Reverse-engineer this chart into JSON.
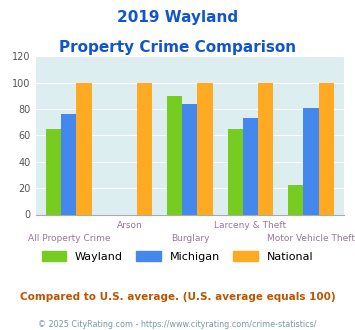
{
  "title_line1": "2019 Wayland",
  "title_line2": "Property Crime Comparison",
  "categories": [
    "All Property Crime",
    "Arson",
    "Burglary",
    "Larceny & Theft",
    "Motor Vehicle Theft"
  ],
  "wayland": [
    65,
    0,
    90,
    65,
    22
  ],
  "michigan": [
    76,
    0,
    84,
    73,
    81
  ],
  "national": [
    100,
    100,
    100,
    100,
    100
  ],
  "colors": {
    "wayland": "#77cc22",
    "michigan": "#4488ee",
    "national": "#ffaa22"
  },
  "ylim": [
    0,
    120
  ],
  "yticks": [
    0,
    20,
    40,
    60,
    80,
    100,
    120
  ],
  "plot_bg": "#ddeef0",
  "title_color": "#1155cc",
  "label_color": "#997799",
  "footer_text": "Compared to U.S. average. (U.S. average equals 100)",
  "copyright_text": "© 2025 CityRating.com - https://www.cityrating.com/crime-statistics/",
  "footer_color": "#bb5500",
  "copyright_color": "#7799aa",
  "bar_width": 0.25
}
